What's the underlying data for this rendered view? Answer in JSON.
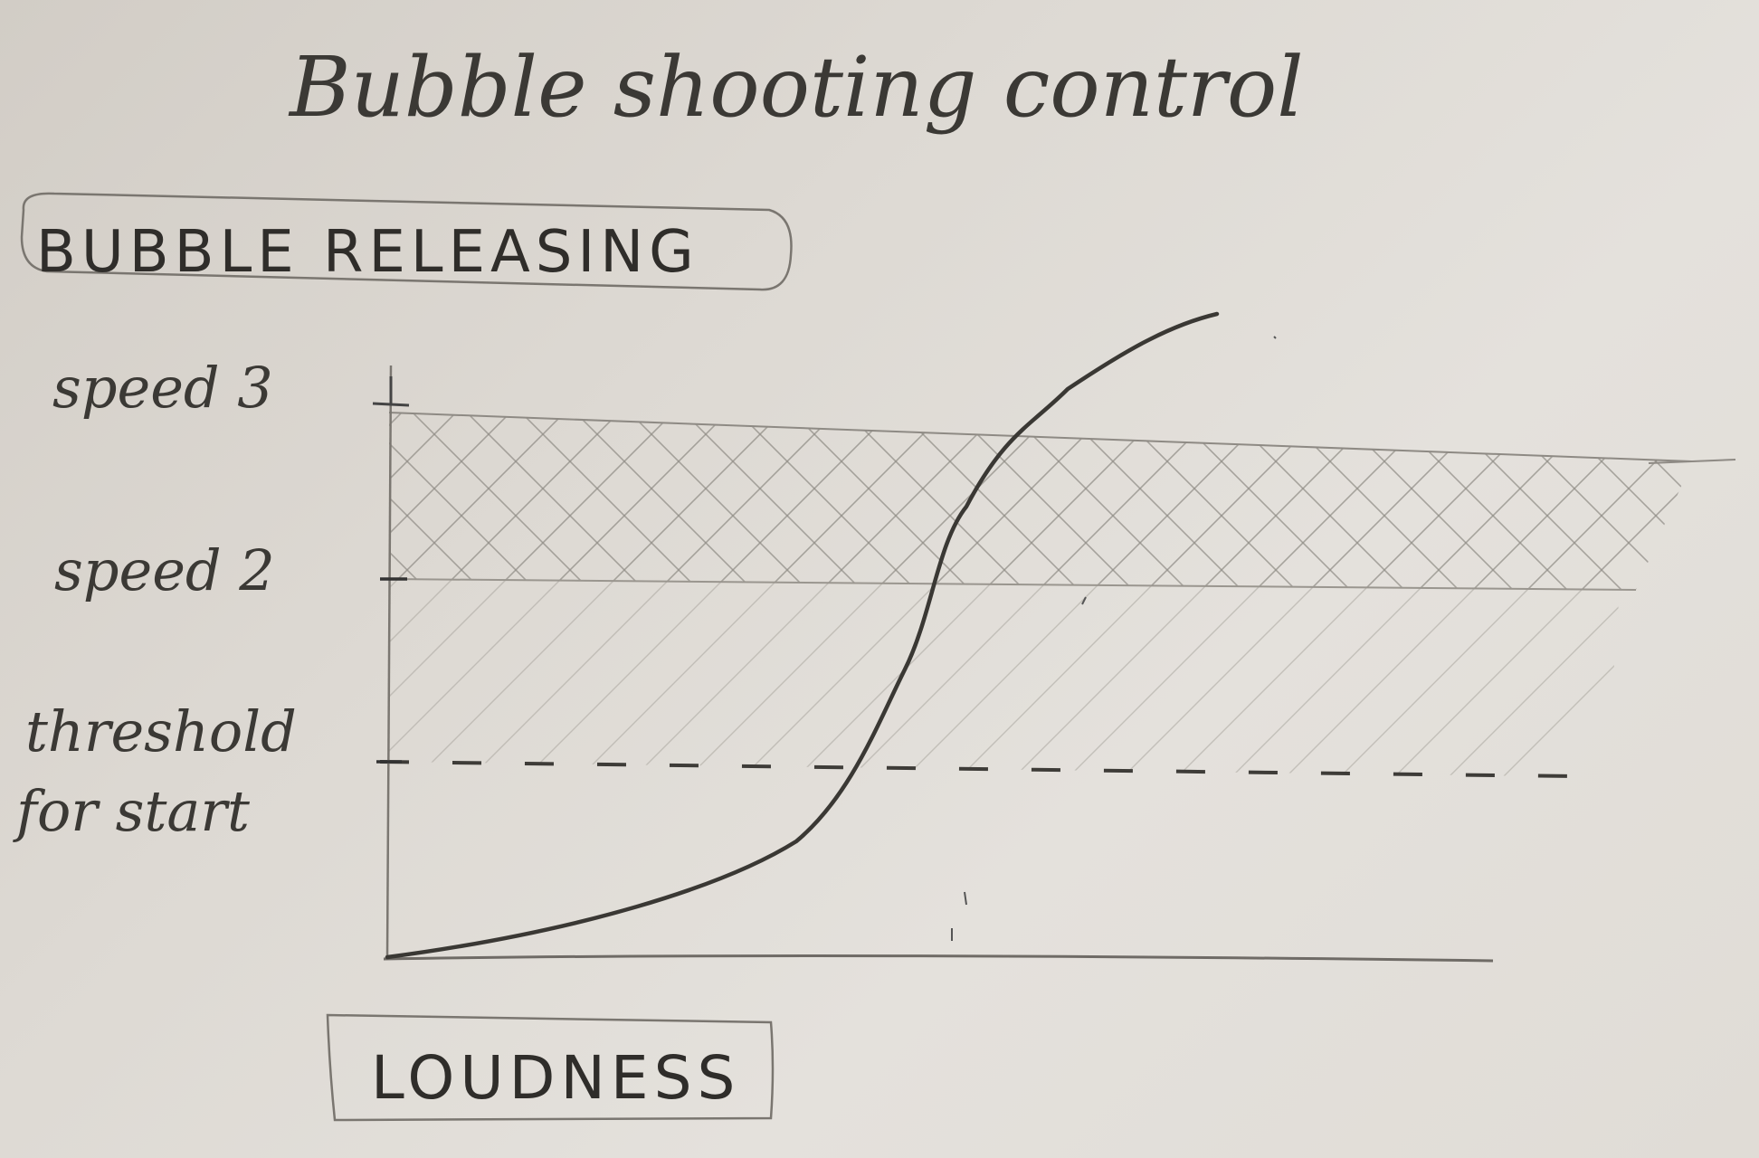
{
  "title": "Bubble shooting control",
  "y_axis_label": "BUBBLE RELEASING",
  "x_axis_label": "LOUDNESS",
  "levels": {
    "speed3": "speed 3",
    "speed2": "speed 2",
    "threshold_line1": "threshold",
    "threshold_line2": "for start"
  },
  "colors": {
    "pencil_dark": "#3a3834",
    "pencil_light": "#8e8a84",
    "paper": "#dcd8d2"
  }
}
